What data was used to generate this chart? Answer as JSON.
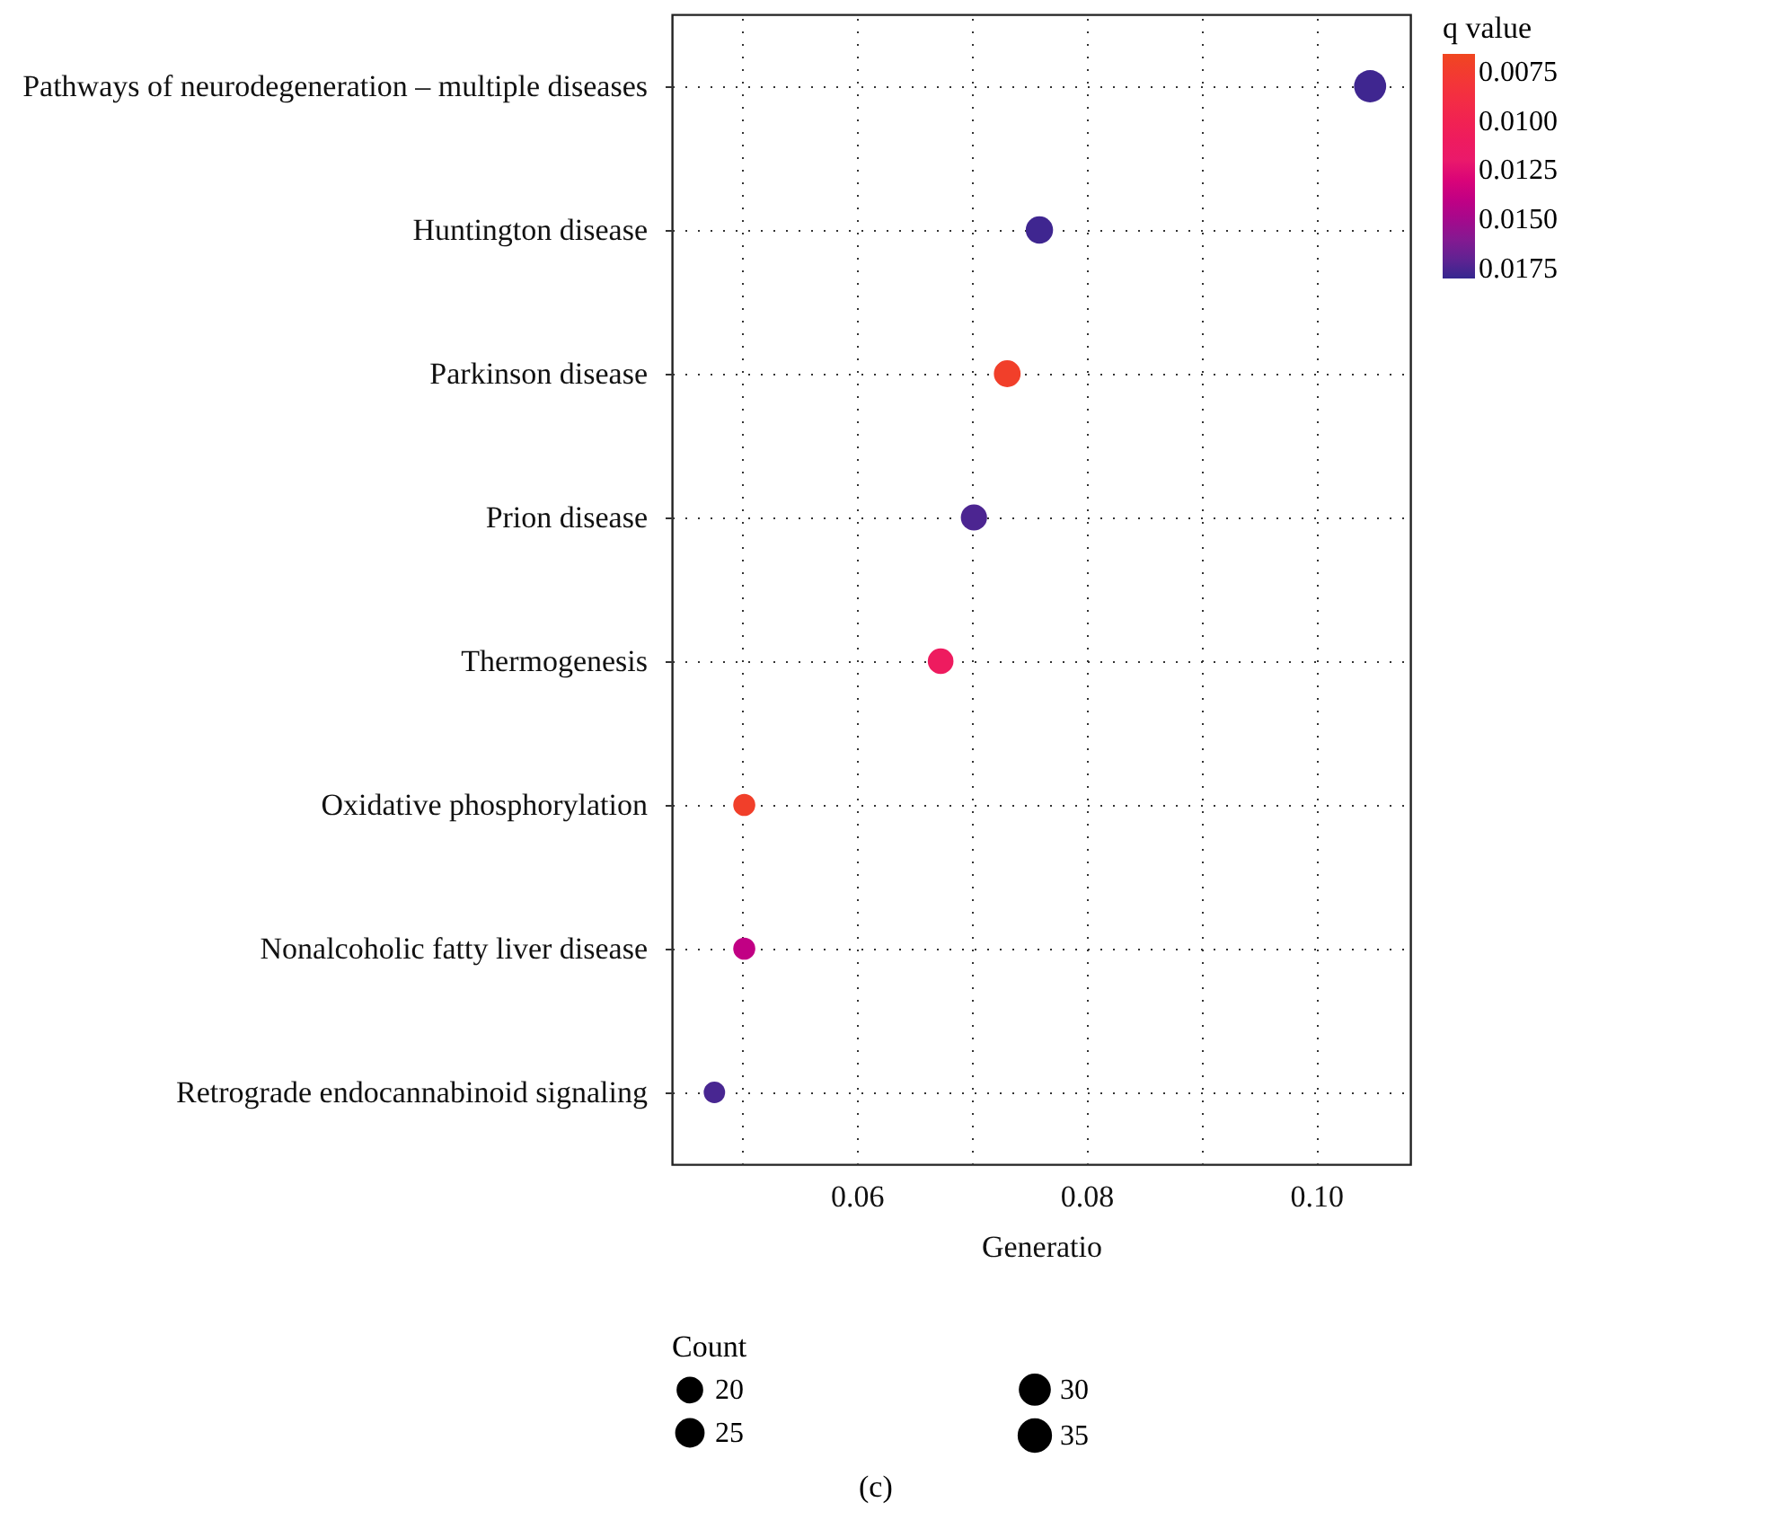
{
  "chart_data": {
    "type": "bubble",
    "xlabel": "Generatio",
    "legend_title": "Count",
    "clabel": "q value",
    "categories": [
      "Pathways of neurodegeneration – multiple diseases",
      "Huntington disease",
      "Parkinson disease",
      "Prion disease",
      "Thermogenesis",
      "Oxidative phosphorylation",
      "Nonalcoholic fatty liver disease",
      "Retrograde endocannabinoid signaling"
    ],
    "values": [
      0.1047,
      0.0759,
      0.0731,
      0.0702,
      0.0673,
      0.0502,
      0.0502,
      0.0476
    ],
    "sizes": [
      36,
      26,
      25,
      24,
      23,
      17,
      17,
      16
    ],
    "cvalues": [
      0.0178,
      0.0178,
      0.0072,
      0.0175,
      0.011,
      0.0072,
      0.014,
      0.0176
    ],
    "size_legend": [
      20,
      25,
      30,
      35
    ],
    "clim": [
      0.0066,
      0.018
    ],
    "cticks": [
      0.0075,
      {
        "value": 0.01,
        "label": "0.0100"
      },
      0.0125,
      {
        "value": 0.015,
        "label": "0.0150"
      },
      0.0175
    ],
    "xlim": [
      0.0439,
      0.1082
    ],
    "xticks": [
      {
        "value": 0.05,
        "label": null
      },
      0.06,
      {
        "value": 0.07,
        "label": null
      },
      0.08,
      {
        "value": 0.09,
        "label": null
      },
      {
        "value": 0.1,
        "label": "0.10"
      }
    ],
    "orientation": "horizontal",
    "grid": true,
    "marker": "circle",
    "annotations": [
      "(c)"
    ]
  }
}
